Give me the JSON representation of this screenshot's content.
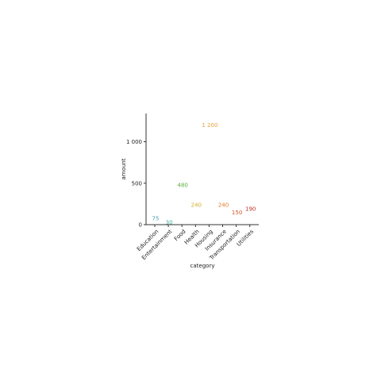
{
  "chart_data": {
    "type": "scatter",
    "mark": "text",
    "categories": [
      "Education",
      "Entertainment",
      "Food",
      "Health",
      "Housing",
      "Insurance",
      "Transportation",
      "Utilities"
    ],
    "values": [
      75,
      30,
      480,
      240,
      1200,
      240,
      150,
      190
    ],
    "labels": [
      "75",
      "30",
      "480",
      "240",
      "1 200",
      "240",
      "150",
      "190"
    ],
    "colors": [
      "#4c9fb5",
      "#3fae9a",
      "#5aae3c",
      "#d1ae2f",
      "#e3a23b",
      "#e07b30",
      "#d6552a",
      "#c0302b"
    ],
    "xlabel": "category",
    "ylabel": "amount",
    "yticks": [
      0,
      500,
      1000
    ],
    "ytick_labels": [
      "0",
      "500",
      "1 000"
    ],
    "ylim": [
      0,
      1340
    ],
    "grid": false,
    "legend": "none"
  }
}
